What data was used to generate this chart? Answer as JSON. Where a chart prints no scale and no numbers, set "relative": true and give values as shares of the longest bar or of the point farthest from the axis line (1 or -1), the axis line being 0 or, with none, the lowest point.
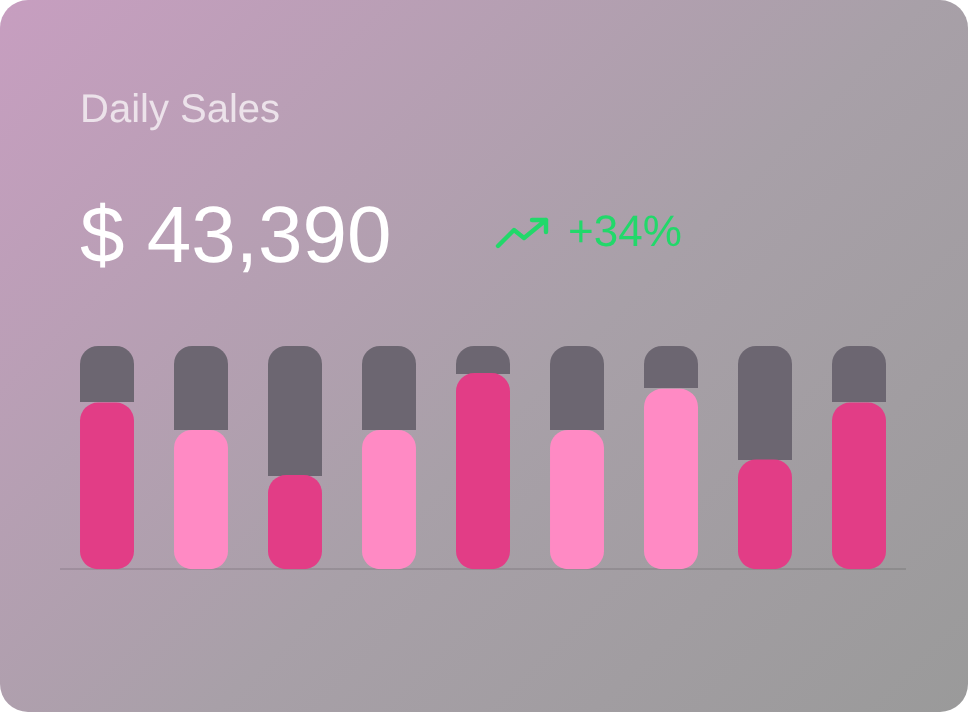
{
  "chart_data": {
    "type": "bar",
    "title": "Daily Sales",
    "subtitle": "$ 43,390",
    "annotations": [
      "+34%"
    ],
    "categories": [
      null,
      null,
      null,
      null,
      null,
      null,
      null,
      null,
      null
    ],
    "relative": true,
    "values": [
      0.85,
      0.71,
      0.48,
      0.71,
      1,
      0.71,
      0.92,
      0.56,
      0.85
    ],
    "colors": [
      "#e23d86",
      "#ff8ac4",
      "#e23d86",
      "#ff8ac4",
      "#e23d86",
      "#ff8ac4",
      "#ff8ac4",
      "#e23d86",
      "#e23d86"
    ],
    "legend": false
  }
}
